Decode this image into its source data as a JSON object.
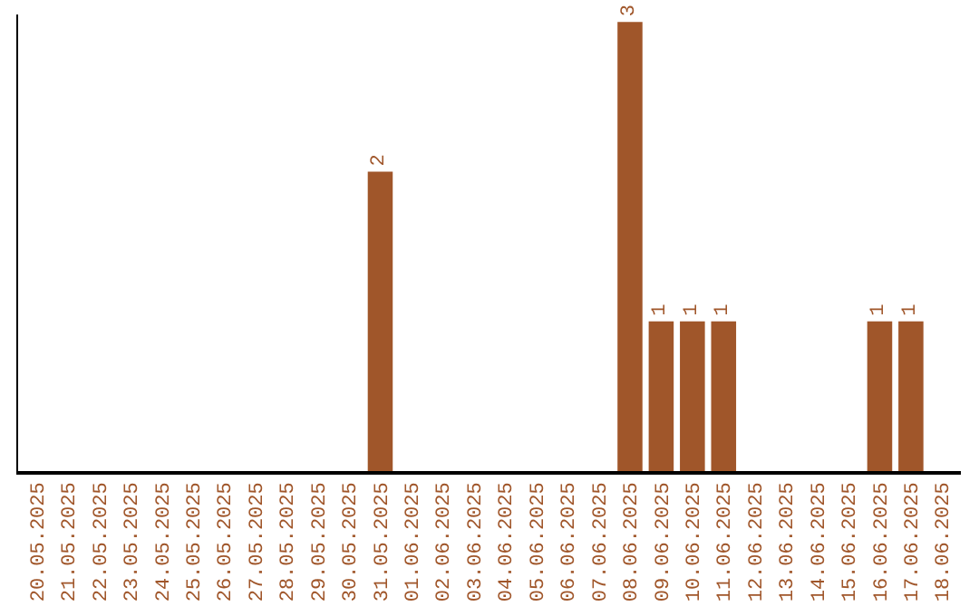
{
  "chart_data": {
    "type": "bar",
    "categories": [
      "20.05.2025",
      "21.05.2025",
      "22.05.2025",
      "23.05.2025",
      "24.05.2025",
      "25.05.2025",
      "26.05.2025",
      "27.05.2025",
      "28.05.2025",
      "29.05.2025",
      "30.05.2025",
      "31.05.2025",
      "01.06.2025",
      "02.06.2025",
      "03.06.2025",
      "04.06.2025",
      "05.06.2025",
      "06.06.2025",
      "07.06.2025",
      "08.06.2025",
      "09.06.2025",
      "10.06.2025",
      "11.06.2025",
      "12.06.2025",
      "13.06.2025",
      "14.06.2025",
      "15.06.2025",
      "16.06.2025",
      "17.06.2025",
      "18.06.2025"
    ],
    "values": [
      0,
      0,
      0,
      0,
      0,
      0,
      0,
      0,
      0,
      0,
      0,
      2,
      0,
      0,
      0,
      0,
      0,
      0,
      0,
      3,
      1,
      1,
      1,
      0,
      0,
      0,
      0,
      1,
      1,
      0
    ],
    "value_labels": [
      null,
      null,
      null,
      null,
      null,
      null,
      null,
      null,
      null,
      null,
      null,
      "2",
      null,
      null,
      null,
      null,
      null,
      null,
      null,
      "3",
      "1",
      "1",
      "1",
      null,
      null,
      null,
      null,
      "1",
      "1",
      null
    ],
    "color": "#a0562a",
    "ylim": [
      0,
      3.05
    ],
    "tick_labels": "x"
  }
}
